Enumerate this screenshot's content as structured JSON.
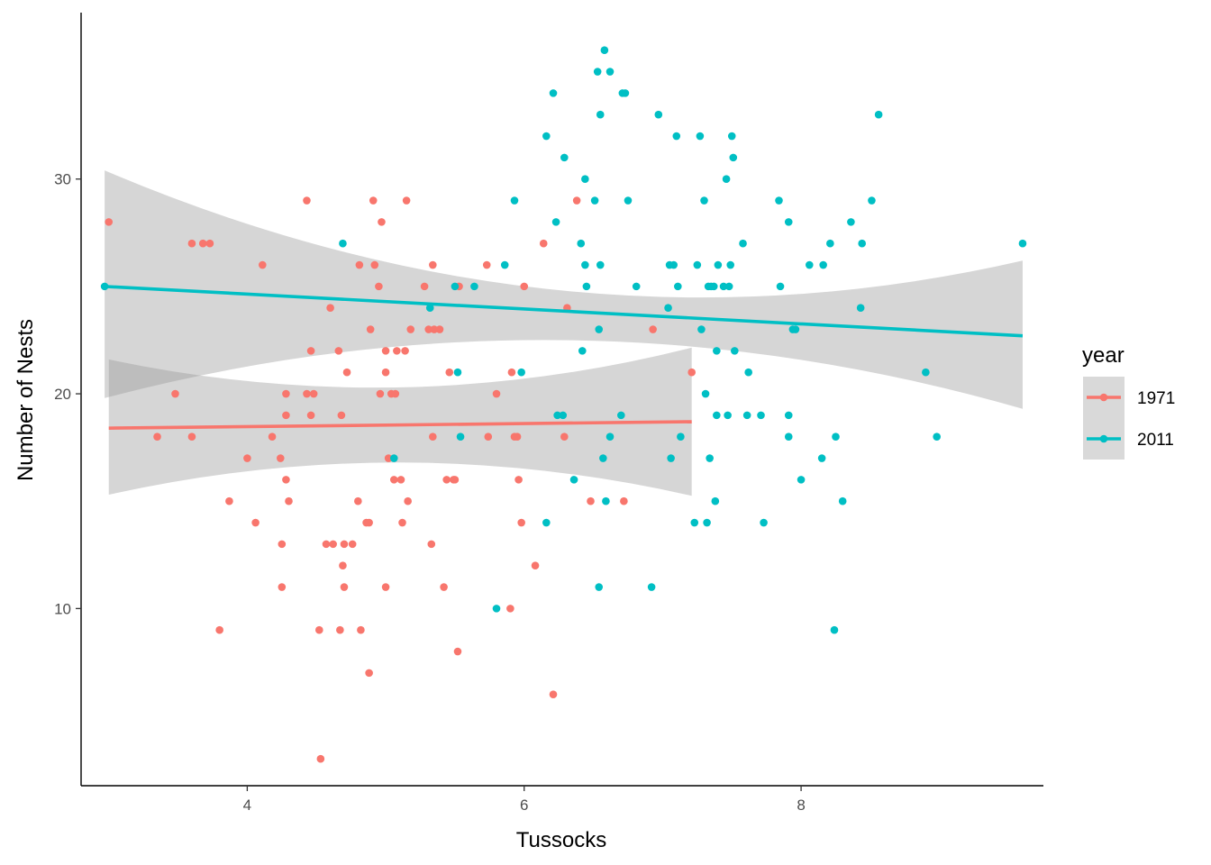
{
  "chart_data": {
    "type": "scatter",
    "xlabel": "Tussocks",
    "ylabel": "Number of Nests",
    "xlim": [
      2.8,
      9.75
    ],
    "ylim": [
      1.75,
      37.75
    ],
    "x_ticks": [
      4,
      6,
      8
    ],
    "y_ticks": [
      10,
      20,
      30
    ],
    "grid": false,
    "legend": {
      "title": "year",
      "position": "right"
    },
    "colors": {
      "1971": "#F8766D",
      "2011": "#00BFC4",
      "ribbon": "#999999"
    },
    "series": [
      {
        "name": "1971",
        "points": [
          [
            3.0,
            28
          ],
          [
            3.35,
            18
          ],
          [
            3.48,
            20
          ],
          [
            3.6,
            27
          ],
          [
            3.6,
            18
          ],
          [
            3.68,
            27
          ],
          [
            3.73,
            27
          ],
          [
            3.8,
            9
          ],
          [
            3.87,
            15
          ],
          [
            4.0,
            17
          ],
          [
            4.06,
            14
          ],
          [
            4.11,
            26
          ],
          [
            4.18,
            18
          ],
          [
            4.24,
            17
          ],
          [
            4.25,
            11
          ],
          [
            4.25,
            13
          ],
          [
            4.28,
            20
          ],
          [
            4.28,
            19
          ],
          [
            4.28,
            16
          ],
          [
            4.3,
            15
          ],
          [
            4.43,
            29
          ],
          [
            4.43,
            20
          ],
          [
            4.46,
            22
          ],
          [
            4.46,
            19
          ],
          [
            4.48,
            20
          ],
          [
            4.52,
            9
          ],
          [
            4.53,
            3
          ],
          [
            4.57,
            13
          ],
          [
            4.6,
            24
          ],
          [
            4.62,
            13
          ],
          [
            4.66,
            22
          ],
          [
            4.67,
            9
          ],
          [
            4.68,
            19
          ],
          [
            4.69,
            12
          ],
          [
            4.7,
            11
          ],
          [
            4.7,
            13
          ],
          [
            4.72,
            21
          ],
          [
            4.76,
            13
          ],
          [
            4.8,
            15
          ],
          [
            4.81,
            26
          ],
          [
            4.82,
            9
          ],
          [
            4.86,
            14
          ],
          [
            4.88,
            7
          ],
          [
            4.88,
            14
          ],
          [
            4.89,
            23
          ],
          [
            4.91,
            29
          ],
          [
            4.92,
            26
          ],
          [
            4.95,
            25
          ],
          [
            4.96,
            20
          ],
          [
            4.97,
            28
          ],
          [
            5.0,
            21
          ],
          [
            5.0,
            22
          ],
          [
            5.0,
            11
          ],
          [
            5.02,
            17
          ],
          [
            5.04,
            20
          ],
          [
            5.06,
            16
          ],
          [
            5.07,
            20
          ],
          [
            5.08,
            22
          ],
          [
            5.11,
            16
          ],
          [
            5.12,
            14
          ],
          [
            5.14,
            22
          ],
          [
            5.15,
            29
          ],
          [
            5.16,
            15
          ],
          [
            5.18,
            23
          ],
          [
            5.28,
            25
          ],
          [
            5.31,
            23
          ],
          [
            5.33,
            13
          ],
          [
            5.34,
            26
          ],
          [
            5.34,
            18
          ],
          [
            5.35,
            23
          ],
          [
            5.39,
            23
          ],
          [
            5.42,
            11
          ],
          [
            5.44,
            16
          ],
          [
            5.46,
            21
          ],
          [
            5.49,
            16
          ],
          [
            5.5,
            16
          ],
          [
            5.52,
            8
          ],
          [
            5.53,
            25
          ],
          [
            5.73,
            26
          ],
          [
            5.74,
            18
          ],
          [
            5.8,
            20
          ],
          [
            5.9,
            10
          ],
          [
            5.91,
            21
          ],
          [
            5.93,
            18
          ],
          [
            5.95,
            18
          ],
          [
            5.96,
            16
          ],
          [
            5.98,
            14
          ],
          [
            6.0,
            25
          ],
          [
            6.08,
            12
          ],
          [
            6.14,
            27
          ],
          [
            6.21,
            6
          ],
          [
            6.29,
            18
          ],
          [
            6.31,
            24
          ],
          [
            6.38,
            29
          ],
          [
            6.48,
            15
          ],
          [
            6.72,
            15
          ],
          [
            6.93,
            23
          ],
          [
            7.21,
            21
          ]
        ],
        "trend": {
          "x1": 3.0,
          "y1": 18.4,
          "x2": 7.21,
          "y2": 18.7,
          "lower1": 15.3,
          "upper1": 21.6,
          "lower2": 15.25,
          "upper2": 22.15,
          "lowerMid": 16.8,
          "upperMid": 20.3
        }
      },
      {
        "name": "2011",
        "points": [
          [
            2.97,
            25
          ],
          [
            4.69,
            27
          ],
          [
            5.06,
            17
          ],
          [
            5.32,
            24
          ],
          [
            5.5,
            25
          ],
          [
            5.52,
            21
          ],
          [
            5.54,
            18
          ],
          [
            5.64,
            25
          ],
          [
            5.8,
            10
          ],
          [
            5.86,
            26
          ],
          [
            5.93,
            29
          ],
          [
            5.98,
            21
          ],
          [
            6.16,
            14
          ],
          [
            6.16,
            32
          ],
          [
            6.21,
            34
          ],
          [
            6.23,
            28
          ],
          [
            6.24,
            19
          ],
          [
            6.28,
            19
          ],
          [
            6.29,
            31
          ],
          [
            6.36,
            16
          ],
          [
            6.41,
            27
          ],
          [
            6.42,
            22
          ],
          [
            6.44,
            26
          ],
          [
            6.44,
            30
          ],
          [
            6.45,
            25
          ],
          [
            6.51,
            29
          ],
          [
            6.53,
            35
          ],
          [
            6.54,
            11
          ],
          [
            6.54,
            23
          ],
          [
            6.55,
            26
          ],
          [
            6.55,
            33
          ],
          [
            6.57,
            17
          ],
          [
            6.58,
            36
          ],
          [
            6.59,
            15
          ],
          [
            6.62,
            18
          ],
          [
            6.62,
            35
          ],
          [
            6.7,
            19
          ],
          [
            6.71,
            34
          ],
          [
            6.73,
            34
          ],
          [
            6.75,
            29
          ],
          [
            6.81,
            25
          ],
          [
            6.92,
            11
          ],
          [
            6.97,
            33
          ],
          [
            7.04,
            24
          ],
          [
            7.05,
            26
          ],
          [
            7.06,
            17
          ],
          [
            7.08,
            26
          ],
          [
            7.1,
            32
          ],
          [
            7.11,
            25
          ],
          [
            7.13,
            18
          ],
          [
            7.23,
            14
          ],
          [
            7.25,
            26
          ],
          [
            7.27,
            32
          ],
          [
            7.28,
            23
          ],
          [
            7.3,
            29
          ],
          [
            7.31,
            20
          ],
          [
            7.32,
            14
          ],
          [
            7.33,
            25
          ],
          [
            7.34,
            17
          ],
          [
            7.35,
            25
          ],
          [
            7.37,
            25
          ],
          [
            7.38,
            15
          ],
          [
            7.39,
            19
          ],
          [
            7.39,
            22
          ],
          [
            7.4,
            26
          ],
          [
            7.44,
            25
          ],
          [
            7.46,
            30
          ],
          [
            7.47,
            19
          ],
          [
            7.48,
            25
          ],
          [
            7.49,
            26
          ],
          [
            7.5,
            32
          ],
          [
            7.51,
            31
          ],
          [
            7.52,
            22
          ],
          [
            7.58,
            27
          ],
          [
            7.61,
            19
          ],
          [
            7.62,
            21
          ],
          [
            7.71,
            19
          ],
          [
            7.73,
            14
          ],
          [
            7.84,
            29
          ],
          [
            7.85,
            25
          ],
          [
            7.91,
            18
          ],
          [
            7.91,
            19
          ],
          [
            7.91,
            28
          ],
          [
            7.94,
            23
          ],
          [
            7.96,
            23
          ],
          [
            8.0,
            16
          ],
          [
            8.06,
            26
          ],
          [
            8.15,
            17
          ],
          [
            8.16,
            26
          ],
          [
            8.21,
            27
          ],
          [
            8.24,
            9
          ],
          [
            8.25,
            18
          ],
          [
            8.3,
            15
          ],
          [
            8.36,
            28
          ],
          [
            8.43,
            24
          ],
          [
            8.44,
            27
          ],
          [
            8.51,
            29
          ],
          [
            8.56,
            33
          ],
          [
            8.9,
            21
          ],
          [
            8.98,
            18
          ],
          [
            9.6,
            27
          ]
        ],
        "trend": {
          "x1": 2.97,
          "y1": 25.0,
          "x2": 9.6,
          "y2": 22.7,
          "lower1": 19.8,
          "upper1": 30.4,
          "lower2": 19.3,
          "upper2": 26.2,
          "lowerMid": 22.5,
          "upperMid": 24.8
        }
      }
    ]
  }
}
